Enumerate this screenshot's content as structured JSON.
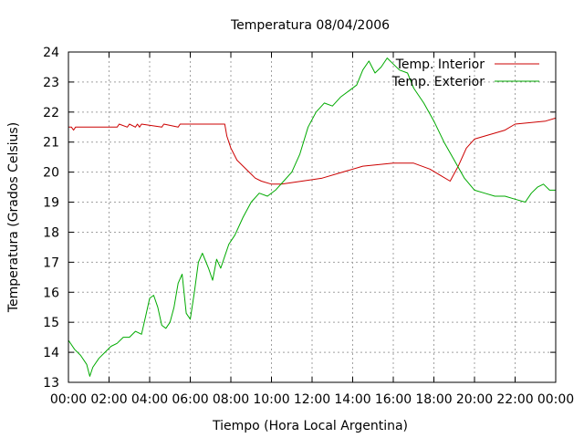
{
  "chart_data": {
    "type": "line",
    "title": "Temperatura 08/04/2006",
    "xlabel": "Tiempo (Hora Local Argentina)",
    "ylabel": "Temperatura (Grados Celsius)",
    "xlim": [
      0,
      24
    ],
    "ylim": [
      13,
      24
    ],
    "x_ticks": [
      0,
      2,
      4,
      6,
      8,
      10,
      12,
      14,
      16,
      18,
      20,
      22,
      24
    ],
    "x_tick_labels": [
      "00:00",
      "02:00",
      "04:00",
      "06:00",
      "08:00",
      "10:00",
      "12:00",
      "14:00",
      "16:00",
      "18:00",
      "20:00",
      "22:00",
      "00:00"
    ],
    "y_ticks": [
      13,
      14,
      15,
      16,
      17,
      18,
      19,
      20,
      21,
      22,
      23,
      24
    ],
    "grid": true,
    "legend": "top-right",
    "series": [
      {
        "name": "Temp. Interior",
        "color": "#cc0000",
        "x": [
          0,
          0.15,
          0.25,
          0.35,
          2.4,
          2.5,
          2.9,
          3.0,
          3.3,
          3.4,
          3.5,
          3.6,
          4.6,
          4.7,
          5.4,
          5.5,
          7.7,
          7.8,
          8.0,
          8.3,
          8.6,
          8.9,
          9.2,
          9.5,
          10.0,
          10.5,
          11.5,
          12.5,
          13.5,
          14.5,
          16.0,
          17.0,
          17.8,
          18.3,
          18.8,
          19.2,
          19.6,
          20.0,
          20.5,
          21.0,
          21.5,
          22.0,
          23.5,
          24.0
        ],
        "y": [
          21.5,
          21.5,
          21.4,
          21.5,
          21.5,
          21.6,
          21.5,
          21.6,
          21.5,
          21.6,
          21.5,
          21.6,
          21.5,
          21.6,
          21.5,
          21.6,
          21.6,
          21.2,
          20.8,
          20.4,
          20.2,
          20.0,
          19.8,
          19.7,
          19.6,
          19.6,
          19.7,
          19.8,
          20.0,
          20.2,
          20.3,
          20.3,
          20.1,
          19.9,
          19.7,
          20.2,
          20.8,
          21.1,
          21.2,
          21.3,
          21.4,
          21.6,
          21.7,
          21.8
        ]
      },
      {
        "name": "Temp. Exterior",
        "color": "#00aa00",
        "x": [
          0,
          0.3,
          0.6,
          0.9,
          1.05,
          1.2,
          1.5,
          1.8,
          2.1,
          2.4,
          2.7,
          3.0,
          3.3,
          3.6,
          3.8,
          4.0,
          4.2,
          4.4,
          4.6,
          4.8,
          5.0,
          5.2,
          5.4,
          5.6,
          5.8,
          6.0,
          6.2,
          6.4,
          6.6,
          6.9,
          7.1,
          7.3,
          7.5,
          7.7,
          7.9,
          8.2,
          8.6,
          9.0,
          9.4,
          9.8,
          10.2,
          10.6,
          11.0,
          11.4,
          11.8,
          12.2,
          12.6,
          13.0,
          13.4,
          13.8,
          14.2,
          14.5,
          14.8,
          15.1,
          15.4,
          15.7,
          16.0,
          16.3,
          16.7,
          17.0,
          17.5,
          18.0,
          18.5,
          19.0,
          19.5,
          20.0,
          20.5,
          21.0,
          21.5,
          22.0,
          22.5,
          22.8,
          23.1,
          23.4,
          23.7,
          24.0
        ],
        "y": [
          14.4,
          14.1,
          13.9,
          13.6,
          13.2,
          13.5,
          13.8,
          14.0,
          14.2,
          14.3,
          14.5,
          14.5,
          14.7,
          14.6,
          15.2,
          15.8,
          15.9,
          15.5,
          14.9,
          14.8,
          15.0,
          15.5,
          16.3,
          16.6,
          15.3,
          15.1,
          16.0,
          17.0,
          17.3,
          16.8,
          16.4,
          17.1,
          16.8,
          17.2,
          17.6,
          17.9,
          18.5,
          19.0,
          19.3,
          19.2,
          19.4,
          19.7,
          20.0,
          20.6,
          21.5,
          22.0,
          22.3,
          22.2,
          22.5,
          22.7,
          22.9,
          23.4,
          23.7,
          23.3,
          23.5,
          23.8,
          23.6,
          23.4,
          23.3,
          22.8,
          22.3,
          21.7,
          21.0,
          20.4,
          19.8,
          19.4,
          19.3,
          19.2,
          19.2,
          19.1,
          19.0,
          19.3,
          19.5,
          19.6,
          19.4,
          19.4
        ]
      }
    ]
  }
}
